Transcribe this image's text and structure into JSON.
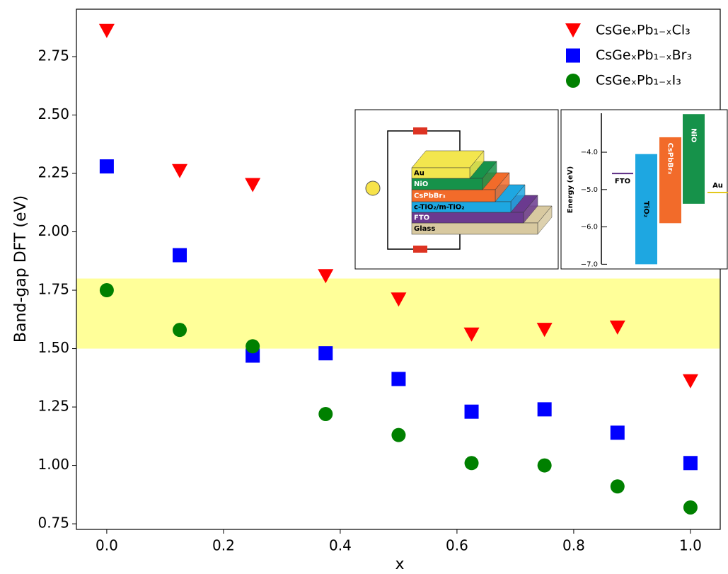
{
  "chart_data": [
    {
      "type": "scatter",
      "x_label": "x",
      "y_label": "Band-gap DFT (eV)",
      "x": [
        0,
        0.125,
        0.25,
        0.375,
        0.5,
        0.625,
        0.75,
        0.875,
        1.0
      ],
      "series": [
        {
          "name": "CsGeₓPb₁₋ₓCl₃",
          "color": "#ff0000",
          "marker": "triangle-down",
          "values": [
            2.86,
            2.26,
            2.2,
            1.81,
            1.71,
            1.56,
            1.58,
            1.59,
            1.36
          ]
        },
        {
          "name": "CsGeₓPb₁₋ₓBr₃",
          "color": "#0000ff",
          "marker": "square",
          "values": [
            2.28,
            1.9,
            1.47,
            1.48,
            1.37,
            1.23,
            1.24,
            1.14,
            1.01
          ]
        },
        {
          "name": "CsGeₓPb₁₋ₓI₃",
          "color": "#008000",
          "marker": "circle",
          "values": [
            1.75,
            1.58,
            1.51,
            1.22,
            1.13,
            1.01,
            1.0,
            0.91,
            0.82
          ]
        }
      ],
      "band": [
        1.5,
        1.8
      ],
      "band_color": "#ffff99",
      "xlim": [
        -0.052,
        1.051
      ],
      "ylim": [
        0.726,
        2.953
      ],
      "xticks": [
        {
          "value": 0,
          "label": "0.0"
        },
        0.2,
        0.4,
        0.6,
        0.8,
        {
          "value": 1,
          "label": "1.0"
        }
      ],
      "yticks": [
        0.75,
        {
          "value": 1,
          "label": "1.00"
        },
        1.25,
        {
          "value": 1.5,
          "label": "1.50"
        },
        1.75,
        {
          "value": 2,
          "label": "2.00"
        },
        2.25,
        {
          "value": 2.5,
          "label": "2.50"
        },
        2.75
      ],
      "legend": "upper right"
    },
    {
      "type": "range-bar",
      "y_label": "Energy (eV)",
      "categories": [
        "TiO₂",
        "CsPbBr₃",
        "NiO"
      ],
      "lows": [
        -7.0,
        -5.9,
        -5.38
      ],
      "highs": [
        -4.05,
        -3.6,
        -2.98
      ],
      "colors": [
        "#1ea7e1",
        "#f26b2a",
        "#16924a"
      ],
      "levels": [
        {
          "name": "FTO",
          "value": -4.57,
          "color": "#5b2c83"
        },
        {
          "name": "Au",
          "value": -5.08,
          "color": "#e3c81c"
        }
      ],
      "ylim": [
        -7.05,
        -2.9
      ],
      "yticks": [
        {
          "value": -4,
          "label": "−4.0"
        },
        {
          "value": -5,
          "label": "−5.0"
        },
        {
          "value": -6,
          "label": "−6.0"
        },
        {
          "value": -7,
          "label": "−7.0"
        }
      ]
    }
  ],
  "device": {
    "layers": [
      "Glass",
      "FTO",
      "c-TiO₂/m-TiO₂",
      "CsPbBr₃",
      "NiO",
      "Au"
    ]
  }
}
